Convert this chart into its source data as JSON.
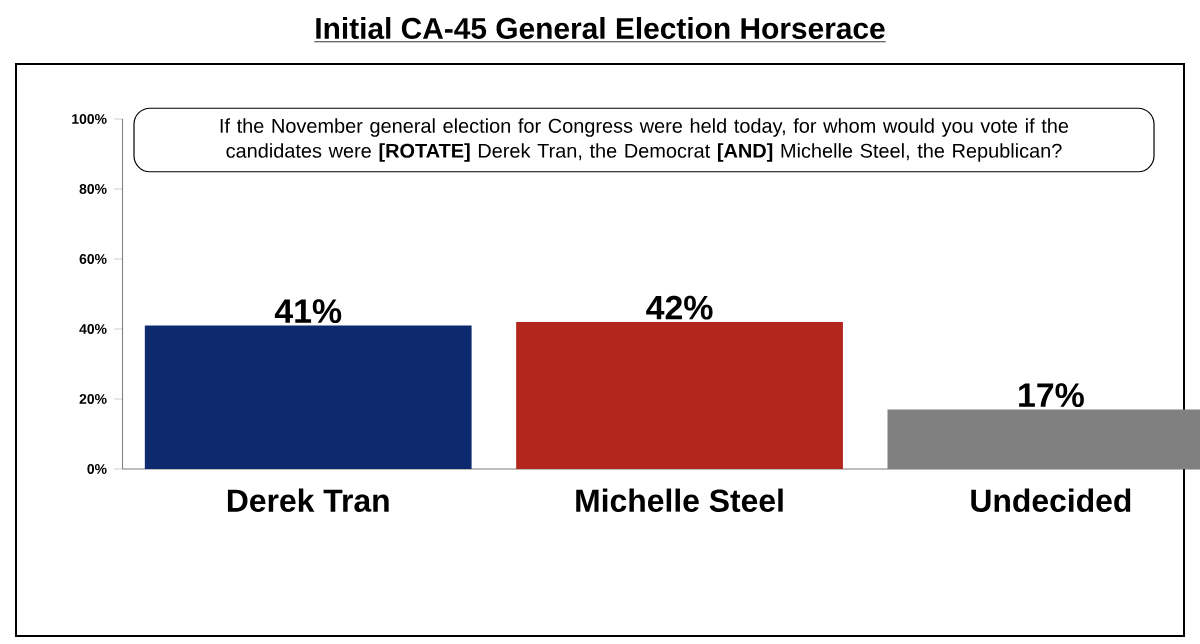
{
  "chart_data": {
    "type": "bar",
    "title": "Initial CA-45 General Election Horserace",
    "annotations": [
      "If the November general election for Congress were held today, for whom would you vote if the candidates were **[ROTATE]** Derek Tran, the Democrat **[AND]** Michelle Steel, the Republican?"
    ],
    "categories": [
      "Derek Tran",
      "Michelle Steel",
      "Undecided"
    ],
    "values": [
      41,
      42,
      17
    ],
    "colors": [
      "#0e2a6e",
      "#b3261e",
      "#808080"
    ],
    "value_labels": [
      "41%",
      "42%",
      "17%"
    ],
    "ylim": [
      0,
      100
    ],
    "yticks": [
      {
        "value": 0,
        "label": "0%"
      },
      {
        "value": 20,
        "label": "20%"
      },
      {
        "value": 40,
        "label": "40%"
      },
      {
        "value": 60,
        "label": "60%"
      },
      {
        "value": 80,
        "label": "80%"
      },
      {
        "value": 100,
        "label": "100%"
      }
    ],
    "grid": false
  }
}
